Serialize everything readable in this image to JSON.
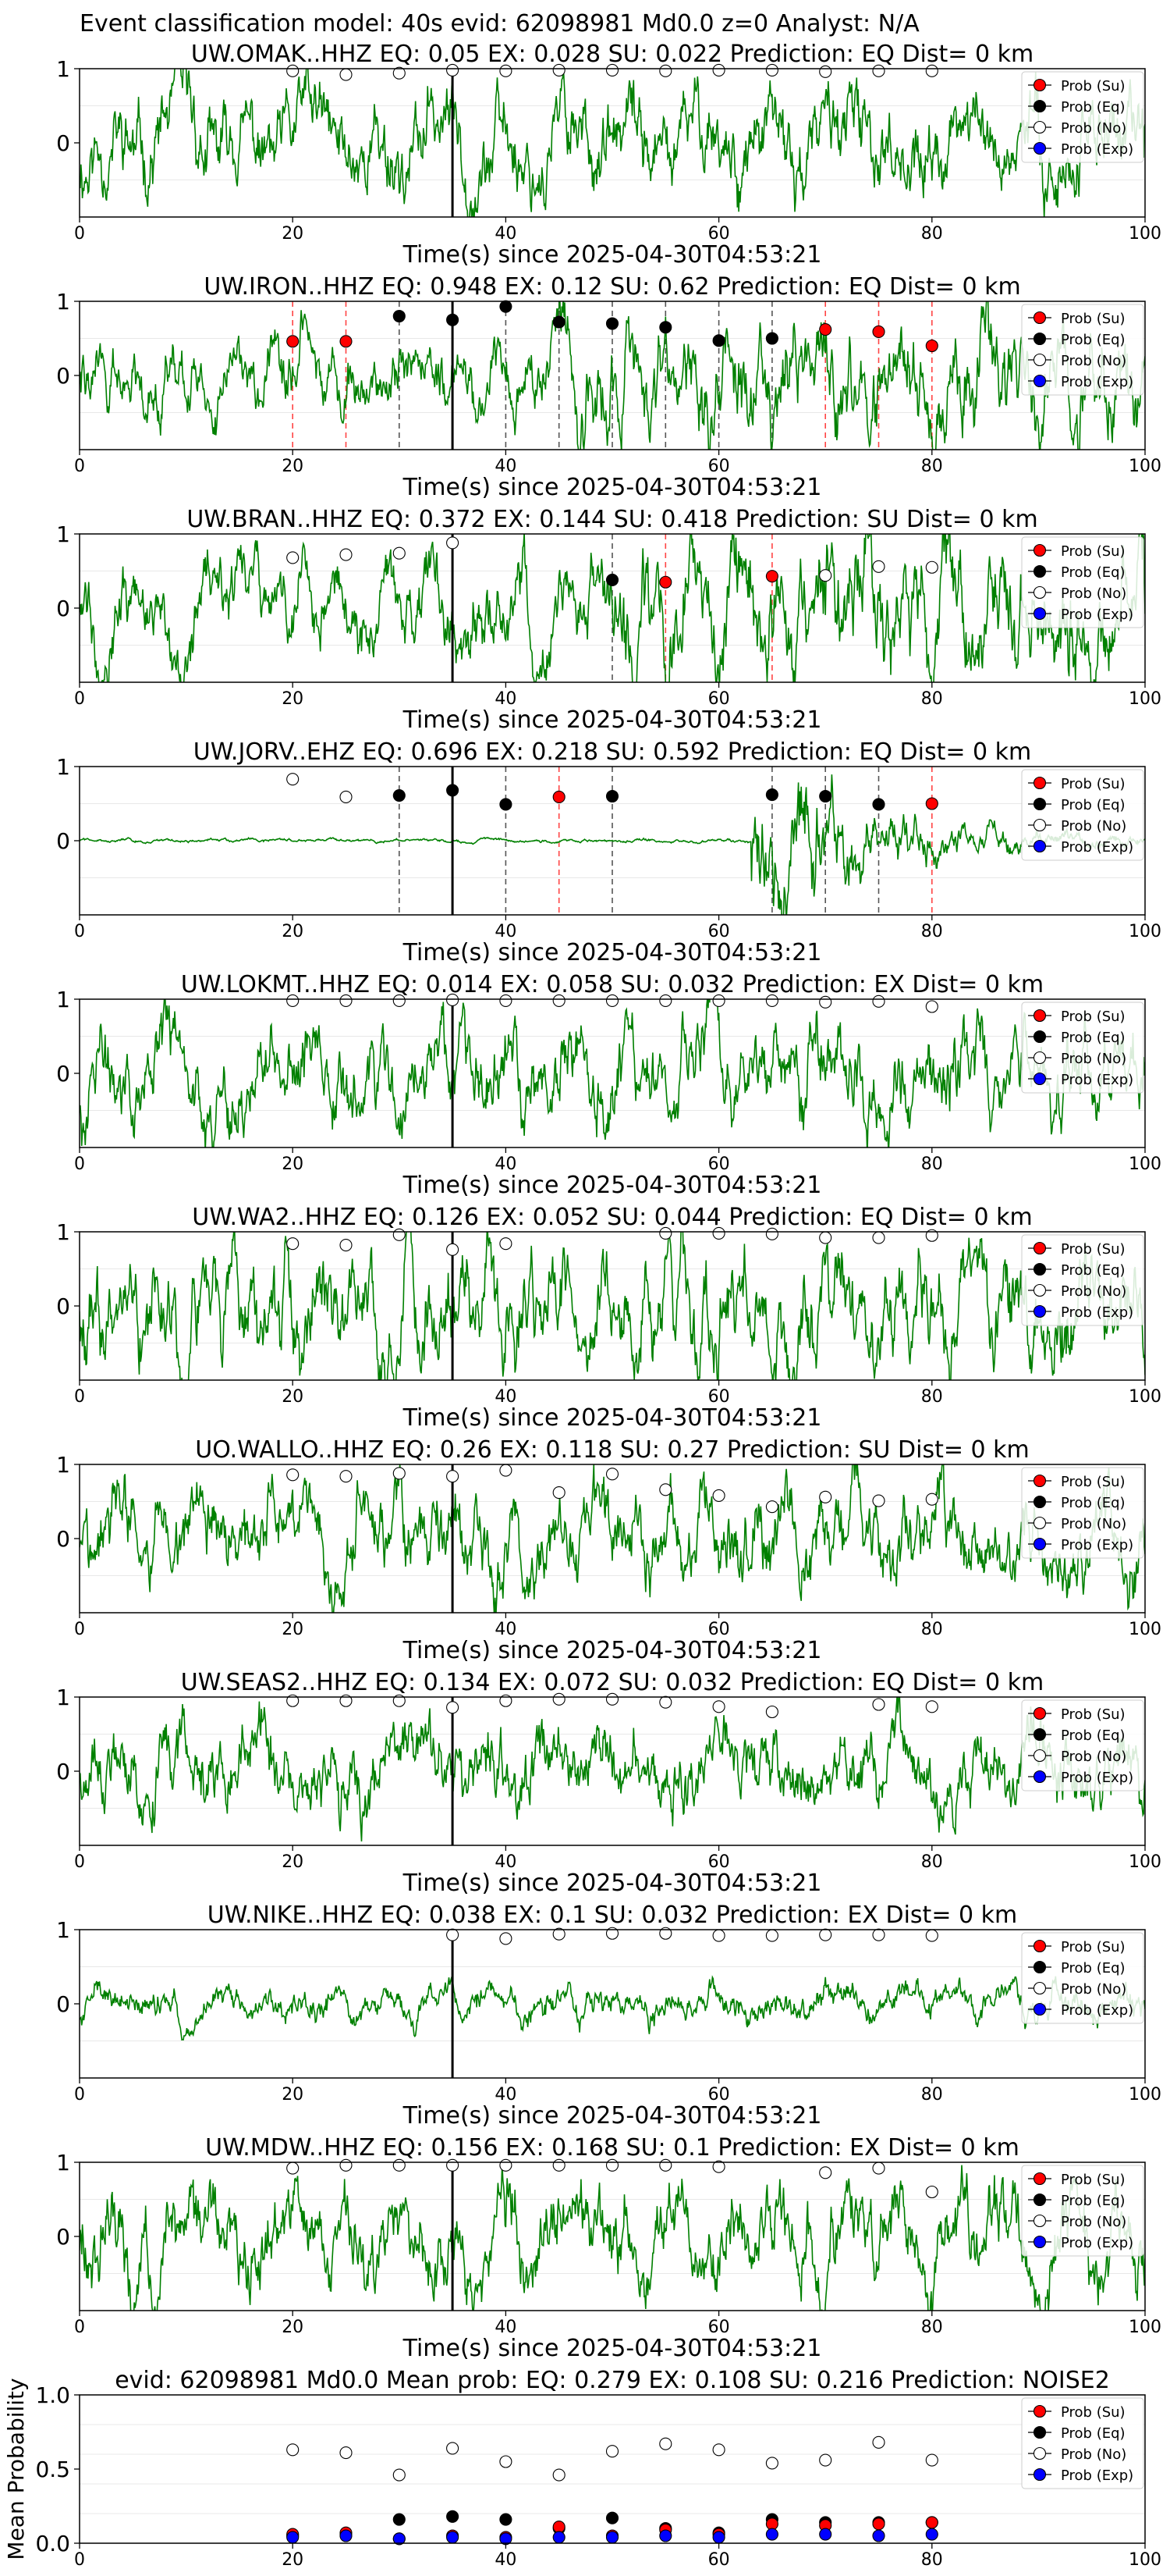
{
  "figure_title": "Event classification model: 40s evid: 62098981 Md0.0 z=0 Analyst: N/A",
  "xlabel": "Time(s) since 2025-04-30T04:53:21",
  "legend_labels": [
    "Prob (Su)",
    "Prob (Eq)",
    "Prob (No)",
    "Prob (Exp)"
  ],
  "colors": {
    "waveform": "#008000",
    "su": "#ff0000",
    "eq": "#000000",
    "no": "#ffffff",
    "exp": "#0000ff",
    "su_line": "#ff4444",
    "eq_line": "#555555"
  },
  "chart_data": [
    {
      "type": "line",
      "title": "UW.OMAK..HHZ   EQ: 0.05  EX: 0.028  SU: 0.022   Prediction: EQ    Dist= 0 km",
      "xlim": [
        0,
        100
      ],
      "ylim": [
        -1,
        1
      ],
      "xticks": [
        0,
        20,
        40,
        60,
        80,
        100
      ],
      "yticks": [
        0,
        1
      ],
      "pick_time": 35,
      "amp": 0.8,
      "freq": 0.6,
      "seed": 11,
      "points": {
        "x": [
          20,
          25,
          30,
          35,
          40,
          45,
          50,
          55,
          60,
          65,
          70,
          75,
          80
        ],
        "y": [
          0.97,
          0.92,
          0.94,
          0.98,
          0.97,
          0.98,
          0.98,
          0.97,
          0.98,
          0.98,
          0.96,
          0.97,
          0.97
        ],
        "cls": [
          "no",
          "no",
          "no",
          "no",
          "no",
          "no",
          "no",
          "no",
          "no",
          "no",
          "no",
          "no",
          "no"
        ]
      }
    },
    {
      "type": "line",
      "title": "UW.IRON..HHZ   EQ: 0.948  EX: 0.12  SU: 0.62   Prediction: EQ    Dist= 0 km",
      "xlim": [
        0,
        100
      ],
      "ylim": [
        -1,
        1
      ],
      "xticks": [
        0,
        20,
        40,
        60,
        80,
        100
      ],
      "yticks": [
        0,
        1
      ],
      "pick_time": 35,
      "amp": 0.6,
      "freq": 1.2,
      "seed": 22,
      "onset": 45,
      "points": {
        "x": [
          20,
          25,
          30,
          35,
          40,
          45,
          50,
          55,
          60,
          65,
          70,
          75,
          80
        ],
        "y": [
          0.46,
          0.46,
          0.8,
          0.75,
          0.93,
          0.72,
          0.7,
          0.65,
          0.47,
          0.5,
          0.62,
          0.59,
          0.4
        ],
        "cls": [
          "su",
          "su",
          "eq",
          "eq",
          "eq",
          "eq",
          "eq",
          "eq",
          "eq",
          "eq",
          "su",
          "su",
          "su"
        ]
      }
    },
    {
      "type": "line",
      "title": "UW.BRAN..HHZ   EQ: 0.372  EX: 0.144  SU: 0.418   Prediction: SU    Dist= 0 km",
      "xlim": [
        0,
        100
      ],
      "ylim": [
        -1,
        1
      ],
      "xticks": [
        0,
        20,
        40,
        60,
        80,
        100
      ],
      "yticks": [
        0,
        1
      ],
      "pick_time": 35,
      "amp": 0.7,
      "freq": 0.9,
      "seed": 33,
      "onset": 50,
      "points": {
        "x": [
          20,
          25,
          30,
          35,
          50,
          55,
          65,
          70,
          75,
          80
        ],
        "y": [
          0.68,
          0.72,
          0.74,
          0.88,
          0.38,
          0.35,
          0.43,
          0.44,
          0.56,
          0.55
        ],
        "cls": [
          "no",
          "no",
          "no",
          "no",
          "eq",
          "su",
          "su",
          "no",
          "no",
          "no"
        ]
      }
    },
    {
      "type": "line",
      "title": "UW.JORV..EHZ   EQ: 0.696  EX: 0.218  SU: 0.592   Prediction: EQ    Dist= 0 km",
      "xlim": [
        0,
        100
      ],
      "ylim": [
        -1,
        1
      ],
      "xticks": [
        0,
        20,
        40,
        60,
        80,
        100
      ],
      "yticks": [
        0,
        1
      ],
      "pick_time": 35,
      "amp": 0.03,
      "freq": 1.0,
      "seed": 44,
      "onset": 63,
      "burst": 1.0,
      "points": {
        "x": [
          20,
          25,
          30,
          35,
          40,
          45,
          50,
          65,
          70,
          75,
          80
        ],
        "y": [
          0.83,
          0.59,
          0.61,
          0.68,
          0.49,
          0.59,
          0.6,
          0.62,
          0.6,
          0.49,
          0.5
        ],
        "cls": [
          "no",
          "no",
          "eq",
          "eq",
          "eq",
          "su",
          "eq",
          "eq",
          "eq",
          "eq",
          "su"
        ]
      }
    },
    {
      "type": "line",
      "title": "UW.LOKMT..HHZ   EQ: 0.014  EX: 0.058  SU: 0.032   Prediction: EX    Dist= 0 km",
      "xlim": [
        0,
        100
      ],
      "ylim": [
        -1,
        1
      ],
      "xticks": [
        0,
        20,
        40,
        60,
        80,
        100
      ],
      "yticks": [
        0,
        1
      ],
      "pick_time": 35,
      "amp": 0.8,
      "freq": 0.6,
      "seed": 55,
      "points": {
        "x": [
          20,
          25,
          30,
          35,
          40,
          45,
          50,
          55,
          60,
          65,
          70,
          75,
          80
        ],
        "y": [
          0.98,
          0.98,
          0.98,
          0.99,
          0.98,
          0.98,
          0.98,
          0.98,
          0.98,
          0.98,
          0.96,
          0.97,
          0.9
        ],
        "cls": [
          "no",
          "no",
          "no",
          "no",
          "no",
          "no",
          "no",
          "no",
          "no",
          "no",
          "no",
          "no",
          "no"
        ]
      }
    },
    {
      "type": "line",
      "title": "UW.WA2..HHZ   EQ: 0.126  EX: 0.052  SU: 0.044   Prediction: EQ    Dist= 0 km",
      "xlim": [
        0,
        100
      ],
      "ylim": [
        -1,
        1
      ],
      "xticks": [
        0,
        20,
        40,
        60,
        80,
        100
      ],
      "yticks": [
        0,
        1
      ],
      "pick_time": 35,
      "amp": 0.9,
      "freq": 2.0,
      "seed": 66,
      "points": {
        "x": [
          20,
          25,
          30,
          35,
          40,
          55,
          60,
          65,
          70,
          75,
          80
        ],
        "y": [
          0.84,
          0.82,
          0.96,
          0.76,
          0.84,
          0.98,
          0.98,
          0.97,
          0.92,
          0.92,
          0.95
        ],
        "cls": [
          "no",
          "no",
          "no",
          "no",
          "no",
          "no",
          "no",
          "no",
          "no",
          "no",
          "no"
        ]
      }
    },
    {
      "type": "line",
      "title": "UO.WALLO..HHZ   EQ: 0.26  EX: 0.118  SU: 0.27   Prediction: SU    Dist= 0 km",
      "xlim": [
        0,
        100
      ],
      "ylim": [
        -1,
        1
      ],
      "xticks": [
        0,
        20,
        40,
        60,
        80,
        100
      ],
      "yticks": [
        0,
        1
      ],
      "pick_time": 35,
      "amp": 0.75,
      "freq": 1.0,
      "seed": 77,
      "points": {
        "x": [
          20,
          25,
          30,
          35,
          40,
          45,
          50,
          55,
          60,
          65,
          70,
          75,
          80
        ],
        "y": [
          0.86,
          0.84,
          0.88,
          0.84,
          0.92,
          0.62,
          0.87,
          0.66,
          0.58,
          0.43,
          0.56,
          0.51,
          0.53
        ],
        "cls": [
          "no",
          "no",
          "no",
          "no",
          "no",
          "no",
          "no",
          "no",
          "no",
          "no",
          "no",
          "no",
          "no"
        ]
      }
    },
    {
      "type": "line",
      "title": "UW.SEAS2..HHZ   EQ: 0.134  EX: 0.072  SU: 0.032   Prediction: EQ    Dist= 0 km",
      "xlim": [
        0,
        100
      ],
      "ylim": [
        -1,
        1
      ],
      "xticks": [
        0,
        20,
        40,
        60,
        80,
        100
      ],
      "yticks": [
        0,
        1
      ],
      "pick_time": 35,
      "amp": 0.7,
      "freq": 0.5,
      "seed": 88,
      "points": {
        "x": [
          20,
          25,
          30,
          35,
          40,
          45,
          50,
          55,
          60,
          65,
          75,
          80
        ],
        "y": [
          0.95,
          0.95,
          0.95,
          0.86,
          0.95,
          0.97,
          0.97,
          0.93,
          0.87,
          0.8,
          0.9,
          0.87
        ],
        "cls": [
          "no",
          "no",
          "no",
          "no",
          "no",
          "no",
          "no",
          "no",
          "no",
          "no",
          "no",
          "no"
        ]
      }
    },
    {
      "type": "line",
      "title": "UW.NIKE..HHZ   EQ: 0.038  EX: 0.1  SU: 0.032   Prediction: EX    Dist= 0 km",
      "xlim": [
        0,
        100
      ],
      "ylim": [
        -1,
        1
      ],
      "xticks": [
        0,
        20,
        40,
        60,
        80,
        100
      ],
      "yticks": [
        0,
        1
      ],
      "pick_time": 35,
      "amp": 0.3,
      "freq": 0.7,
      "seed": 99,
      "points": {
        "x": [
          35,
          40,
          45,
          50,
          55,
          60,
          65,
          70,
          75,
          80
        ],
        "y": [
          0.93,
          0.88,
          0.94,
          0.95,
          0.95,
          0.92,
          0.92,
          0.93,
          0.93,
          0.92
        ],
        "cls": [
          "no",
          "no",
          "no",
          "no",
          "no",
          "no",
          "no",
          "no",
          "no",
          "no"
        ]
      }
    },
    {
      "type": "line",
      "title": "UW.MDW..HHZ   EQ: 0.156  EX: 0.168  SU: 0.1   Prediction: EX    Dist= 0 km",
      "xlim": [
        0,
        100
      ],
      "ylim": [
        -1,
        1
      ],
      "xticks": [
        0,
        20,
        40,
        60,
        80,
        100
      ],
      "yticks": [
        0,
        1
      ],
      "pick_time": 35,
      "amp": 0.8,
      "freq": 0.7,
      "seed": 111,
      "points": {
        "x": [
          20,
          25,
          30,
          35,
          40,
          45,
          50,
          55,
          60,
          70,
          75,
          80
        ],
        "y": [
          0.92,
          0.96,
          0.96,
          0.96,
          0.96,
          0.96,
          0.96,
          0.96,
          0.94,
          0.86,
          0.92,
          0.6
        ],
        "cls": [
          "no",
          "no",
          "no",
          "no",
          "no",
          "no",
          "no",
          "no",
          "no",
          "no",
          "no",
          "no"
        ]
      }
    },
    {
      "type": "scatter",
      "title": "evid: 62098981  Md0.0   Mean prob:   EQ: 0.279  EX: 0.108  SU: 0.216   Prediction: NOISE2",
      "xlabel": "",
      "ylabel": "Mean Probability",
      "xlim": [
        0,
        100
      ],
      "ylim": [
        0,
        1
      ],
      "xticks": [
        0,
        20,
        40,
        60,
        80,
        100
      ],
      "yticks": [
        0.0,
        0.5,
        1.0
      ],
      "ytick_labels": [
        "0.0",
        "0.5",
        "1.0"
      ],
      "x": [
        20,
        25,
        30,
        35,
        40,
        45,
        50,
        55,
        60,
        65,
        70,
        75,
        80
      ],
      "series": [
        {
          "cls": "no",
          "values": [
            0.63,
            0.61,
            0.46,
            0.64,
            0.55,
            0.46,
            0.62,
            0.67,
            0.63,
            0.54,
            0.56,
            0.68,
            0.56
          ]
        },
        {
          "cls": "eq",
          "values": [
            0.05,
            0.06,
            0.16,
            0.18,
            0.16,
            0.1,
            0.17,
            0.1,
            0.07,
            0.16,
            0.14,
            0.14,
            0.14
          ]
        },
        {
          "cls": "su",
          "values": [
            0.06,
            0.07,
            0.03,
            0.05,
            0.04,
            0.11,
            0.05,
            0.09,
            0.06,
            0.13,
            0.12,
            0.13,
            0.14
          ]
        },
        {
          "cls": "exp",
          "values": [
            0.04,
            0.05,
            0.03,
            0.04,
            0.03,
            0.04,
            0.04,
            0.05,
            0.04,
            0.06,
            0.06,
            0.05,
            0.06
          ]
        }
      ]
    }
  ]
}
